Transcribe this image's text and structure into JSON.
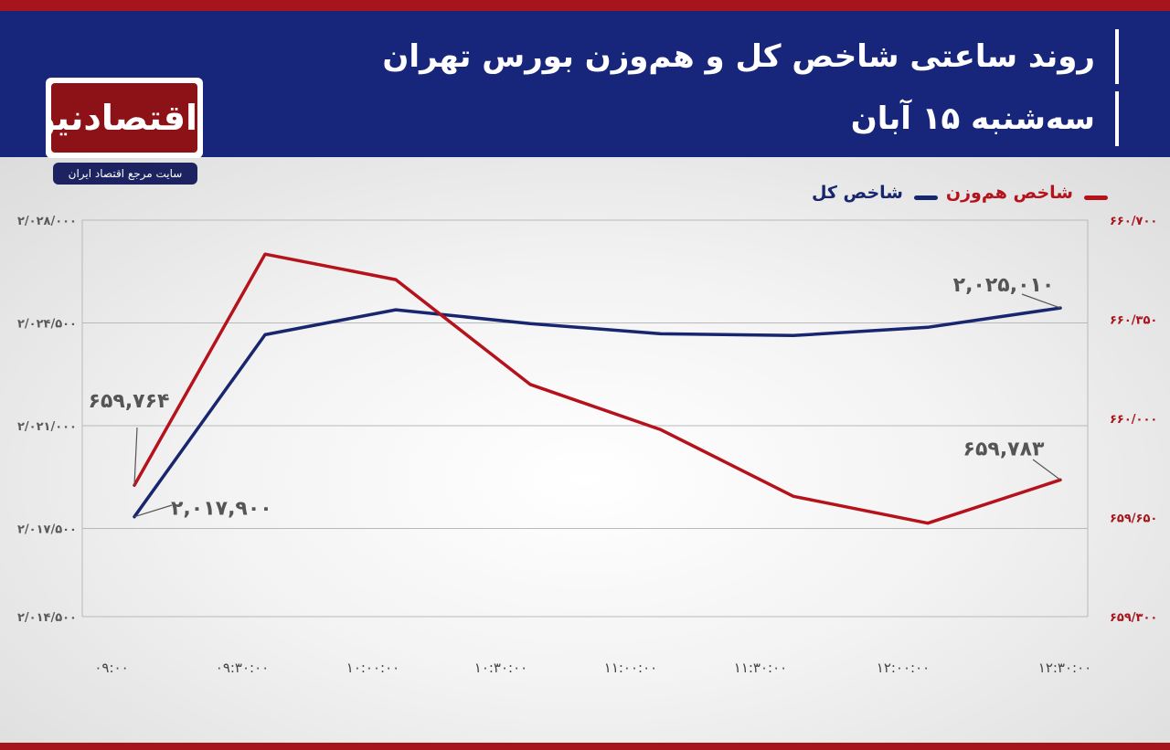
{
  "header": {
    "title_line1": "روند ساعتی شاخص کل و هم‌وزن بورس تهران",
    "title_line2": "سه‌شنبه ۱۵ آبان"
  },
  "logo": {
    "name": "اقتصادنیوز",
    "tagline": "سایت مرجع اقتصاد ایران"
  },
  "colors": {
    "header_bg": "#17267a",
    "accent_red": "#a6151b",
    "series_total": "#17266e",
    "series_equal": "#b5121b"
  },
  "chart_data": {
    "type": "line",
    "x": [
      "۰۹:۰۰",
      "۰۹:۳۰:۰۰",
      "۱۰:۰۰:۰۰",
      "۱۰:۳۰:۰۰",
      "۱۱:۰۰:۰۰",
      "۱۱:۳۰:۰۰",
      "۱۲:۰۰:۰۰",
      "۱۲:۳۰:۰۰"
    ],
    "series": [
      {
        "name": "شاخص کل",
        "axis": "left",
        "color": "#17266e",
        "values": [
          2017900,
          2024100,
          2024950,
          2024480,
          2024130,
          2024070,
          2024350,
          2025010
        ]
      },
      {
        "name": "شاخص هم‌وزن",
        "axis": "right",
        "color": "#b5121b",
        "values": [
          659764,
          660580,
          660490,
          660120,
          659960,
          659725,
          659630,
          659783
        ]
      }
    ],
    "left_axis": {
      "ylim": [
        2014500,
        2028000
      ],
      "ticks": [
        2014500,
        2017500,
        2021000,
        2024500,
        2028000
      ],
      "tick_labels": [
        "۲/۰۱۴/۵۰۰",
        "۲/۰۱۷/۵۰۰",
        "۲/۰۲۱/۰۰۰",
        "۲/۰۲۴/۵۰۰",
        "۲/۰۲۸/۰۰۰"
      ]
    },
    "right_axis": {
      "ylim": [
        659300,
        660700
      ],
      "ticks": [
        659300,
        659650,
        660000,
        660350,
        660700
      ],
      "tick_labels": [
        "۶۵۹/۳۰۰",
        "۶۵۹/۶۵۰",
        "۶۶۰/۰۰۰",
        "۶۶۰/۳۵۰",
        "۶۶۰/۷۰۰"
      ]
    },
    "annotations": [
      {
        "series": 0,
        "index": 0,
        "text": "۲,۰۱۷,۹۰۰"
      },
      {
        "series": 1,
        "index": 0,
        "text": "۶۵۹,۷۶۴"
      },
      {
        "series": 0,
        "index": 7,
        "text": "۲,۰۲۵,۰۱۰"
      },
      {
        "series": 1,
        "index": 7,
        "text": "۶۵۹,۷۸۳"
      }
    ],
    "grid": true,
    "legend_position": "top-right"
  }
}
